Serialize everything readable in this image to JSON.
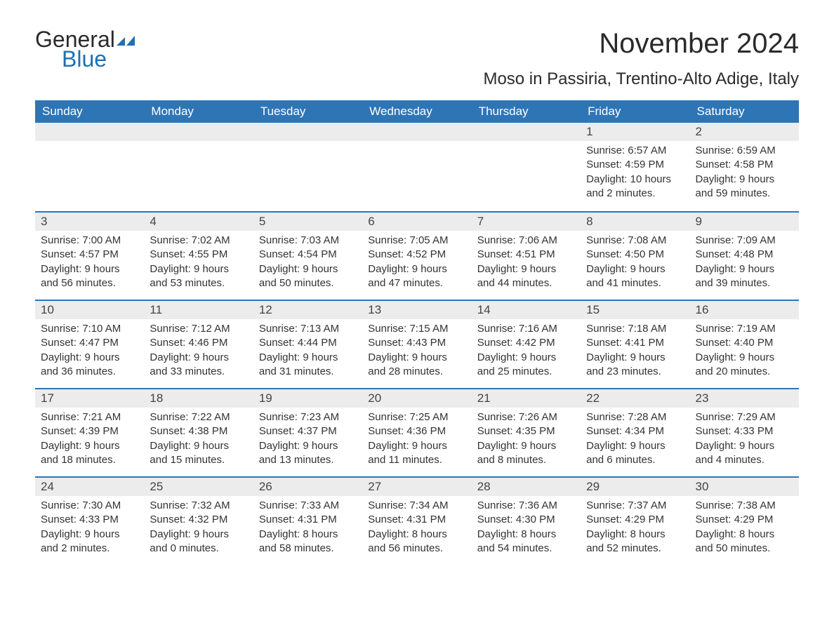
{
  "brand": {
    "word1": "General",
    "word2": "Blue",
    "accent_color": "#1f6fb2"
  },
  "title": "November 2024",
  "location": "Moso in Passiria, Trentino-Alto Adige, Italy",
  "day_headers": [
    "Sunday",
    "Monday",
    "Tuesday",
    "Wednesday",
    "Thursday",
    "Friday",
    "Saturday"
  ],
  "colors": {
    "header_bg": "#2e75b6",
    "header_text": "#ffffff",
    "day_head_bg": "#ececec",
    "rule": "#2e75b6",
    "body_text": "#333333"
  },
  "weeks": [
    [
      null,
      null,
      null,
      null,
      null,
      {
        "n": "1",
        "sunrise": "6:57 AM",
        "sunset": "4:59 PM",
        "daylight": "10 hours and 2 minutes."
      },
      {
        "n": "2",
        "sunrise": "6:59 AM",
        "sunset": "4:58 PM",
        "daylight": "9 hours and 59 minutes."
      }
    ],
    [
      {
        "n": "3",
        "sunrise": "7:00 AM",
        "sunset": "4:57 PM",
        "daylight": "9 hours and 56 minutes."
      },
      {
        "n": "4",
        "sunrise": "7:02 AM",
        "sunset": "4:55 PM",
        "daylight": "9 hours and 53 minutes."
      },
      {
        "n": "5",
        "sunrise": "7:03 AM",
        "sunset": "4:54 PM",
        "daylight": "9 hours and 50 minutes."
      },
      {
        "n": "6",
        "sunrise": "7:05 AM",
        "sunset": "4:52 PM",
        "daylight": "9 hours and 47 minutes."
      },
      {
        "n": "7",
        "sunrise": "7:06 AM",
        "sunset": "4:51 PM",
        "daylight": "9 hours and 44 minutes."
      },
      {
        "n": "8",
        "sunrise": "7:08 AM",
        "sunset": "4:50 PM",
        "daylight": "9 hours and 41 minutes."
      },
      {
        "n": "9",
        "sunrise": "7:09 AM",
        "sunset": "4:48 PM",
        "daylight": "9 hours and 39 minutes."
      }
    ],
    [
      {
        "n": "10",
        "sunrise": "7:10 AM",
        "sunset": "4:47 PM",
        "daylight": "9 hours and 36 minutes."
      },
      {
        "n": "11",
        "sunrise": "7:12 AM",
        "sunset": "4:46 PM",
        "daylight": "9 hours and 33 minutes."
      },
      {
        "n": "12",
        "sunrise": "7:13 AM",
        "sunset": "4:44 PM",
        "daylight": "9 hours and 31 minutes."
      },
      {
        "n": "13",
        "sunrise": "7:15 AM",
        "sunset": "4:43 PM",
        "daylight": "9 hours and 28 minutes."
      },
      {
        "n": "14",
        "sunrise": "7:16 AM",
        "sunset": "4:42 PM",
        "daylight": "9 hours and 25 minutes."
      },
      {
        "n": "15",
        "sunrise": "7:18 AM",
        "sunset": "4:41 PM",
        "daylight": "9 hours and 23 minutes."
      },
      {
        "n": "16",
        "sunrise": "7:19 AM",
        "sunset": "4:40 PM",
        "daylight": "9 hours and 20 minutes."
      }
    ],
    [
      {
        "n": "17",
        "sunrise": "7:21 AM",
        "sunset": "4:39 PM",
        "daylight": "9 hours and 18 minutes."
      },
      {
        "n": "18",
        "sunrise": "7:22 AM",
        "sunset": "4:38 PM",
        "daylight": "9 hours and 15 minutes."
      },
      {
        "n": "19",
        "sunrise": "7:23 AM",
        "sunset": "4:37 PM",
        "daylight": "9 hours and 13 minutes."
      },
      {
        "n": "20",
        "sunrise": "7:25 AM",
        "sunset": "4:36 PM",
        "daylight": "9 hours and 11 minutes."
      },
      {
        "n": "21",
        "sunrise": "7:26 AM",
        "sunset": "4:35 PM",
        "daylight": "9 hours and 8 minutes."
      },
      {
        "n": "22",
        "sunrise": "7:28 AM",
        "sunset": "4:34 PM",
        "daylight": "9 hours and 6 minutes."
      },
      {
        "n": "23",
        "sunrise": "7:29 AM",
        "sunset": "4:33 PM",
        "daylight": "9 hours and 4 minutes."
      }
    ],
    [
      {
        "n": "24",
        "sunrise": "7:30 AM",
        "sunset": "4:33 PM",
        "daylight": "9 hours and 2 minutes."
      },
      {
        "n": "25",
        "sunrise": "7:32 AM",
        "sunset": "4:32 PM",
        "daylight": "9 hours and 0 minutes."
      },
      {
        "n": "26",
        "sunrise": "7:33 AM",
        "sunset": "4:31 PM",
        "daylight": "8 hours and 58 minutes."
      },
      {
        "n": "27",
        "sunrise": "7:34 AM",
        "sunset": "4:31 PM",
        "daylight": "8 hours and 56 minutes."
      },
      {
        "n": "28",
        "sunrise": "7:36 AM",
        "sunset": "4:30 PM",
        "daylight": "8 hours and 54 minutes."
      },
      {
        "n": "29",
        "sunrise": "7:37 AM",
        "sunset": "4:29 PM",
        "daylight": "8 hours and 52 minutes."
      },
      {
        "n": "30",
        "sunrise": "7:38 AM",
        "sunset": "4:29 PM",
        "daylight": "8 hours and 50 minutes."
      }
    ]
  ],
  "labels": {
    "sunrise": "Sunrise:",
    "sunset": "Sunset:",
    "daylight": "Daylight:"
  }
}
